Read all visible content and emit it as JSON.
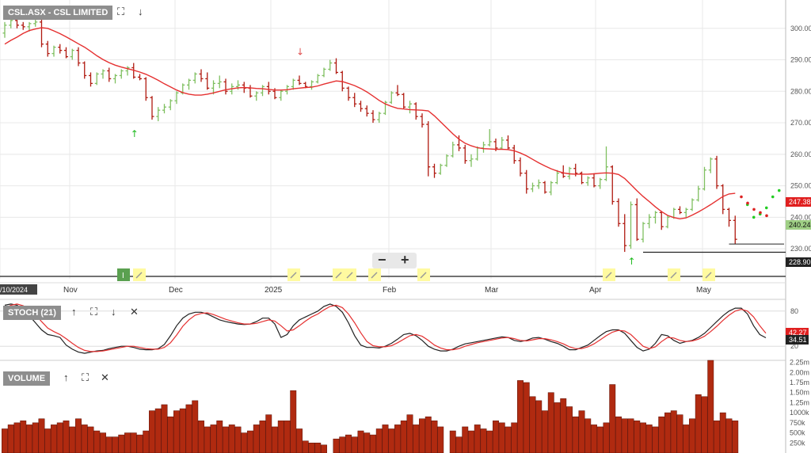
{
  "colors": {
    "up": "#7fbf60",
    "down": "#b01a10",
    "ma": "#e53030",
    "stoch_k": "#222222",
    "stoch_d": "#e53030",
    "volume": "#b02a10",
    "proj_up": "#22cc22",
    "proj_down": "#dd2222",
    "header_bg": "#8e8e8e",
    "grid": "#e8e8e8",
    "tag_red": "#e02020",
    "tag_green": "#9fcf85",
    "tag_dark": "#222222"
  },
  "icons": {
    "maximize": "expand-icon",
    "collapse": "chevron-down-icon",
    "move_up": "arrow-up-icon",
    "move_down": "arrow-down-icon",
    "close": "close-icon",
    "zoom_out": "minus-icon",
    "zoom_in": "plus-icon"
  },
  "header": {
    "main_title": "CSL.ASX - CSL LIMITED",
    "stoch_title": "STOCH (21)",
    "volume_title": "VOLUME"
  },
  "zoom": {
    "minus": "−",
    "plus": "+"
  },
  "chart_data": [
    {
      "type": "candlestick",
      "title": "CSL.ASX - CSL LIMITED",
      "x_labels": [
        "/10/2024",
        "Nov",
        "Dec",
        "2025",
        "Feb",
        "Mar",
        "Apr",
        "May"
      ],
      "y_ticks": [
        "300.00",
        "290.00",
        "280.00",
        "270.00",
        "260.00",
        "250.00",
        "240.00",
        "230.00"
      ],
      "ylim": [
        226,
        309
      ],
      "price_tags": {
        "upper_red": "247.38",
        "green": "240.24",
        "lower_dark": "228.90"
      },
      "event_marker": "I",
      "ohlc": [
        [
          298.5,
          302,
          297,
          301
        ],
        [
          301,
          303.5,
          300,
          302.5
        ],
        [
          302.5,
          303,
          300,
          301
        ],
        [
          301,
          302,
          299.5,
          300.5
        ],
        [
          300.5,
          302,
          299,
          301.5
        ],
        [
          301.5,
          303,
          300.5,
          302
        ],
        [
          302,
          303,
          294,
          295
        ],
        [
          295,
          296,
          291,
          292
        ],
        [
          292,
          294.5,
          291,
          294
        ],
        [
          294,
          295,
          292,
          293
        ],
        [
          293,
          294,
          290.5,
          291
        ],
        [
          291,
          293.5,
          290,
          293
        ],
        [
          293,
          294,
          288,
          289
        ],
        [
          289,
          289.5,
          284,
          285
        ],
        [
          285,
          286,
          281.5,
          282.5
        ],
        [
          282.5,
          286,
          282,
          285.5
        ],
        [
          285.5,
          287,
          284,
          286.5
        ],
        [
          286.5,
          287.5,
          283,
          284
        ],
        [
          284,
          285.5,
          282.5,
          285
        ],
        [
          285,
          287,
          284,
          286.5
        ],
        [
          286.5,
          288,
          285,
          287.5
        ],
        [
          287.5,
          289,
          284,
          284.5
        ],
        [
          284.5,
          285.5,
          283.5,
          284
        ],
        [
          284,
          284.5,
          277,
          278
        ],
        [
          278,
          278.5,
          271,
          272
        ],
        [
          272,
          275,
          270.5,
          274
        ],
        [
          274,
          276,
          273,
          275
        ],
        [
          275,
          277.5,
          274,
          277
        ],
        [
          277,
          280,
          276,
          279.5
        ],
        [
          279.5,
          282.5,
          279,
          282
        ],
        [
          282,
          284,
          280.5,
          283.5
        ],
        [
          283.5,
          286,
          282.5,
          285.5
        ],
        [
          285.5,
          287,
          283,
          284
        ],
        [
          284,
          286,
          280.5,
          281
        ],
        [
          281,
          283.5,
          279,
          282.5
        ],
        [
          282.5,
          285,
          281,
          283
        ],
        [
          283,
          284,
          279,
          280
        ],
        [
          280,
          282.5,
          279,
          281.5
        ],
        [
          281.5,
          283.5,
          280.5,
          282
        ],
        [
          282,
          283,
          279.5,
          281
        ],
        [
          281,
          282,
          278,
          278.5
        ],
        [
          278.5,
          280,
          277,
          279.5
        ],
        [
          279.5,
          282,
          278.5,
          281.5
        ],
        [
          281.5,
          283,
          279,
          280
        ],
        [
          280,
          281,
          277.5,
          278
        ],
        [
          278,
          280.5,
          277,
          280
        ],
        [
          280,
          282,
          279,
          281.5
        ],
        [
          281.5,
          284,
          280.5,
          283.5
        ],
        [
          283.5,
          285,
          282,
          282.5
        ],
        [
          282.5,
          283,
          281,
          281.5
        ],
        [
          281.5,
          283.5,
          280.5,
          283
        ],
        [
          283,
          285.5,
          282.5,
          285
        ],
        [
          285,
          287.5,
          284.5,
          287
        ],
        [
          287,
          290,
          286.5,
          289
        ],
        [
          289,
          290.5,
          285.5,
          286
        ],
        [
          286,
          286.5,
          280,
          281
        ],
        [
          281,
          281.5,
          277,
          278
        ],
        [
          278,
          279.5,
          275,
          276
        ],
        [
          276,
          277,
          273.5,
          274.5
        ],
        [
          274.5,
          275.5,
          272,
          273
        ],
        [
          273,
          274,
          270,
          271
        ],
        [
          271,
          273.5,
          270,
          273
        ],
        [
          273,
          277,
          272.5,
          276.5
        ],
        [
          276.5,
          280,
          276,
          279.5
        ],
        [
          279.5,
          282,
          278.5,
          279
        ],
        [
          279,
          279.5,
          274.5,
          275
        ],
        [
          275,
          277,
          273,
          276
        ],
        [
          276,
          276.5,
          271,
          272
        ],
        [
          272,
          273,
          268.5,
          269.5
        ],
        [
          269.5,
          270.5,
          253,
          256
        ],
        [
          256,
          257,
          252.5,
          254
        ],
        [
          254,
          257,
          253.5,
          256.5
        ],
        [
          256.5,
          260,
          256,
          259.5
        ],
        [
          259.5,
          264,
          259,
          263
        ],
        [
          263,
          266,
          261,
          262
        ],
        [
          262,
          263,
          257,
          258
        ],
        [
          258,
          260,
          256,
          258.5
        ],
        [
          258.5,
          262.5,
          258,
          262
        ],
        [
          262,
          264,
          260.5,
          263
        ],
        [
          263,
          268,
          262.5,
          264
        ],
        [
          264,
          265,
          261,
          262
        ],
        [
          262,
          265.5,
          261.5,
          264.5
        ],
        [
          264.5,
          266,
          261.5,
          262
        ],
        [
          262,
          263,
          257,
          258
        ],
        [
          258,
          259,
          253,
          254
        ],
        [
          254,
          255,
          247.5,
          249
        ],
        [
          249,
          251,
          248,
          250
        ],
        [
          250,
          252,
          249,
          251
        ],
        [
          251,
          251.5,
          247.5,
          248
        ],
        [
          248,
          251.5,
          247,
          251
        ],
        [
          251,
          255,
          250.5,
          254
        ],
        [
          254,
          256.5,
          252.5,
          253
        ],
        [
          253,
          256,
          252,
          255.5
        ],
        [
          255.5,
          257,
          253,
          254
        ],
        [
          254,
          254.5,
          250.5,
          251
        ],
        [
          251,
          253,
          250,
          252.5
        ],
        [
          252.5,
          254,
          249.5,
          250
        ],
        [
          250,
          252.5,
          249,
          252
        ],
        [
          252,
          262.5,
          251.5,
          256
        ],
        [
          256,
          256.5,
          244,
          245
        ],
        [
          245,
          246,
          237,
          238
        ],
        [
          238,
          241,
          229,
          231
        ],
        [
          231,
          245,
          230,
          244
        ],
        [
          244,
          246,
          232.5,
          233
        ],
        [
          233,
          238.5,
          232,
          238
        ],
        [
          238,
          241,
          236.5,
          240
        ],
        [
          240,
          242,
          238,
          241.5
        ],
        [
          241.5,
          242,
          236,
          237
        ],
        [
          237,
          240.5,
          236.5,
          240
        ],
        [
          240,
          243,
          239.5,
          242.5
        ],
        [
          242.5,
          243.5,
          241,
          241.5
        ],
        [
          241.5,
          243,
          240,
          242.5
        ],
        [
          242.5,
          246,
          242,
          245.5
        ],
        [
          245.5,
          250,
          245,
          249
        ],
        [
          249,
          256,
          248.5,
          255
        ],
        [
          255,
          259,
          254,
          258.5
        ],
        [
          258.5,
          259.5,
          249,
          250
        ],
        [
          250,
          250.5,
          241,
          242.5
        ],
        [
          242.5,
          243,
          237,
          239
        ],
        [
          239,
          240.5,
          231.5,
          233
        ]
      ],
      "ma": [
        295,
        296.2,
        297.2,
        298.4,
        299.3,
        299.8,
        300.2,
        300,
        299.2,
        298.3,
        297.3,
        296.2,
        295.1,
        294,
        292.7,
        291.3,
        290.1,
        289.1,
        288.3,
        287.7,
        287.2,
        286.7,
        286.1,
        285.4,
        284.5,
        283.5,
        282.4,
        281.4,
        280.4,
        279.6,
        279.1,
        278.8,
        278.8,
        279.1,
        279.5,
        280,
        280.5,
        280.8,
        281.1,
        281.2,
        281.1,
        280.9,
        280.8,
        280.6,
        280.4,
        280.4,
        280.5,
        280.8,
        281,
        281.2,
        281.3,
        281.7,
        282.3,
        282.8,
        283.3,
        283.1,
        282.5,
        281.8,
        280.9,
        279.8,
        278.5,
        277.1,
        276,
        275.2,
        274.6,
        274.4,
        274.2,
        274.1,
        274,
        273.8,
        272.2,
        270.3,
        268.4,
        266.5,
        264.8,
        263.5,
        262.7,
        262.1,
        261.8,
        261.7,
        261.6,
        261.6,
        261.5,
        261.1,
        260.4,
        259.5,
        258.4,
        257.3,
        256.3,
        255.4,
        254.7,
        254.1,
        253.8,
        253.7,
        253.7,
        253.7,
        253.8,
        254,
        254.1,
        254,
        253.6,
        252.3,
        250.4,
        248.4,
        246.6,
        245,
        243.3,
        241.8,
        240.6,
        239.9,
        239.5,
        239.8,
        240.7,
        241.7,
        242.8,
        244,
        245.3,
        246.6,
        247.4,
        247.6
      ],
      "projection_up": [
        244,
        240,
        241,
        243,
        246.5,
        248.5
      ],
      "projection_down": [
        246.5,
        244.5,
        242.5,
        241.5,
        240.5
      ]
    },
    {
      "type": "line",
      "title": "STOCH (21)",
      "y_ticks": [
        "80",
        "20"
      ],
      "ylim": [
        0,
        100
      ],
      "tags": {
        "d": "42.27",
        "k": "34.51"
      },
      "series": [
        {
          "values": [
            90,
            92,
            90,
            83,
            72,
            60,
            48,
            40,
            38,
            35,
            22,
            15,
            10,
            8,
            10,
            12,
            13,
            16,
            18,
            20,
            20,
            18,
            15,
            14,
            14,
            16,
            23,
            38,
            55,
            68,
            75,
            78,
            78,
            75,
            70,
            65,
            62,
            60,
            58,
            57,
            58,
            62,
            68,
            68,
            58,
            35,
            40,
            55,
            65,
            70,
            75,
            80,
            88,
            92,
            88,
            78,
            60,
            38,
            22,
            18,
            18,
            17,
            20,
            25,
            32,
            40,
            42,
            38,
            30,
            20,
            15,
            12,
            12,
            15,
            20,
            24,
            26,
            28,
            30,
            32,
            34,
            36,
            35,
            30,
            28,
            30,
            34,
            35,
            32,
            28,
            25,
            20,
            14,
            14,
            18,
            22,
            30,
            38,
            45,
            48,
            48,
            42,
            30,
            18,
            12,
            15,
            25,
            40,
            38,
            30,
            25,
            28,
            30,
            35,
            42,
            52,
            62,
            72,
            80,
            85,
            85,
            75,
            55,
            40,
            34.5
          ]
        },
        {
          "values": [
            85,
            90,
            92,
            89,
            83,
            74,
            62,
            51,
            45,
            40,
            33,
            25,
            18,
            13,
            11,
            11,
            12,
            14,
            16,
            18,
            20,
            20,
            18,
            16,
            15,
            15,
            18,
            26,
            39,
            54,
            65,
            73,
            76,
            77,
            74,
            70,
            66,
            63,
            60,
            58,
            58,
            59,
            62,
            65,
            63,
            55,
            46,
            48,
            55,
            63,
            70,
            75,
            82,
            88,
            90,
            86,
            75,
            60,
            43,
            28,
            21,
            19,
            19,
            21,
            26,
            32,
            38,
            40,
            37,
            30,
            22,
            17,
            14,
            14,
            16,
            20,
            23,
            26,
            28,
            30,
            32,
            34,
            35,
            33,
            30,
            29,
            31,
            33,
            33,
            31,
            28,
            24,
            19,
            16,
            16,
            19,
            24,
            31,
            38,
            44,
            47,
            46,
            40,
            30,
            20,
            16,
            19,
            28,
            35,
            34,
            30,
            28,
            29,
            32,
            37,
            45,
            54,
            64,
            73,
            80,
            83,
            80,
            70,
            55,
            42.3
          ]
        }
      ]
    },
    {
      "type": "bar",
      "title": "VOLUME",
      "y_ticks": [
        "2.25m",
        "2.00m",
        "1.75m",
        "1.50m",
        "1.25m",
        "1000k",
        "750k",
        "500k",
        "250k"
      ],
      "ylim": [
        0,
        2300000
      ],
      "values": [
        600000,
        700000,
        750000,
        800000,
        700000,
        750000,
        850000,
        600000,
        700000,
        750000,
        800000,
        650000,
        850000,
        700000,
        650000,
        550000,
        500000,
        400000,
        400000,
        450000,
        500000,
        500000,
        450000,
        550000,
        1050000,
        1100000,
        1200000,
        900000,
        1050000,
        1100000,
        1200000,
        1300000,
        800000,
        650000,
        700000,
        800000,
        650000,
        700000,
        650000,
        500000,
        550000,
        700000,
        800000,
        950000,
        650000,
        800000,
        800000,
        1550000,
        600000,
        300000,
        250000,
        250000,
        200000,
        0,
        350000,
        400000,
        450000,
        400000,
        550000,
        500000,
        450000,
        600000,
        700000,
        600000,
        700000,
        800000,
        950000,
        700000,
        850000,
        900000,
        800000,
        650000,
        0,
        550000,
        400000,
        650000,
        550000,
        700000,
        600000,
        550000,
        800000,
        750000,
        650000,
        750000,
        1800000,
        1750000,
        1400000,
        1300000,
        1050000,
        1500000,
        1250000,
        1350000,
        1150000,
        900000,
        1050000,
        850000,
        700000,
        650000,
        750000,
        1700000,
        900000,
        850000,
        850000,
        800000,
        750000,
        700000,
        650000,
        900000,
        1000000,
        1050000,
        950000,
        700000,
        850000,
        1450000,
        1400000,
        2300000,
        800000,
        1000000,
        850000,
        800000
      ]
    }
  ]
}
